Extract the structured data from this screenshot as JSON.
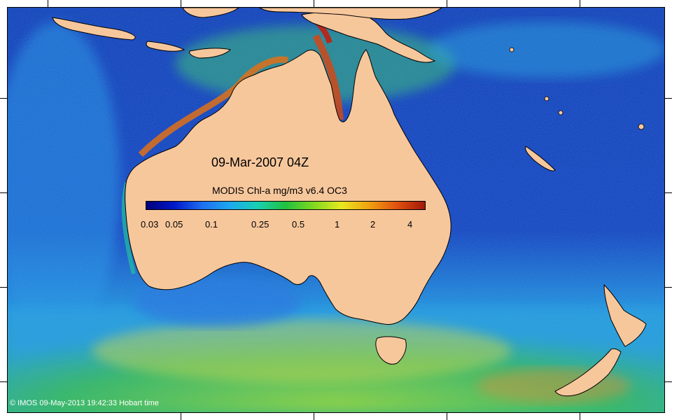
{
  "map": {
    "date_label": "09-Mar-2007 04Z",
    "scale_title": "MODIS Chl-a mg/m3 v6.4 OC3",
    "colorbar_ticks": [
      "0.03",
      "0.05",
      "0.1",
      "0.25",
      "0.5",
      "1",
      "2",
      "4"
    ],
    "copyright": "© IMOS 09-May-2013 19:42:33 Hobart time",
    "colors": {
      "land": "#f7c79c",
      "ocean_low": "#0a2a9a",
      "ocean_mid": "#1e7fe0",
      "ocean_high_green": "#2fc42a",
      "ocean_yellow": "#e8e820",
      "ocean_red": "#c8301a"
    },
    "colorbar_gradient": [
      "#00007a",
      "#0018c8",
      "#1e6ef0",
      "#1ea8f0",
      "#18d0b0",
      "#20c040",
      "#80d820",
      "#e8e820",
      "#f0a010",
      "#e05010",
      "#a01808"
    ]
  }
}
